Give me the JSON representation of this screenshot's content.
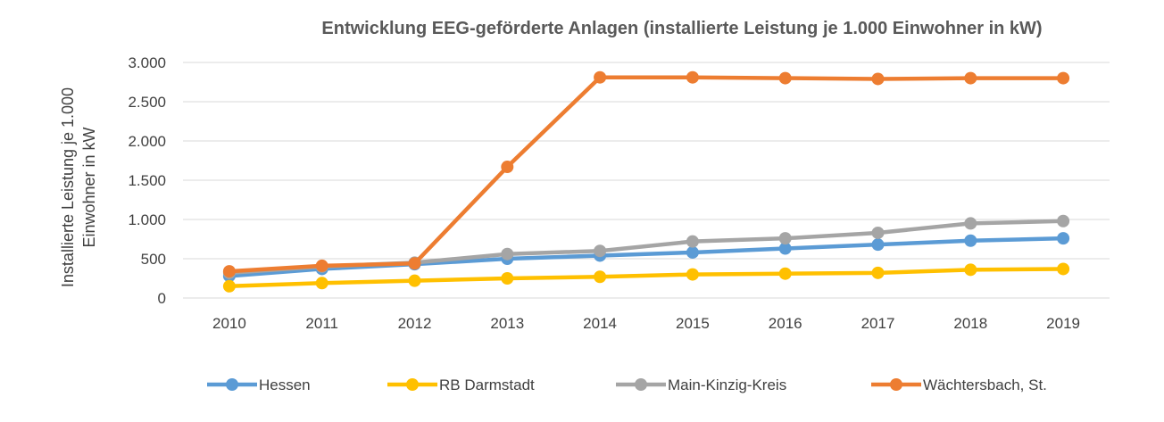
{
  "chart_data": {
    "type": "line",
    "title": "Entwicklung EEG-geförderte Anlagen (installierte Leistung je 1.000 Einwohner in kW)",
    "xlabel": "",
    "ylabel_lines": [
      "Installierte Leistung je 1.000",
      "Einwohner in kW"
    ],
    "x": [
      "2010",
      "2011",
      "2012",
      "2013",
      "2014",
      "2015",
      "2016",
      "2017",
      "2018",
      "2019"
    ],
    "ylim": [
      0,
      3000
    ],
    "yticks": [
      0,
      500,
      1000,
      1500,
      2000,
      2500,
      3000
    ],
    "ytick_labels": [
      "0",
      "500",
      "1.000",
      "1.500",
      "2.000",
      "2.500",
      "3.000"
    ],
    "grid": true,
    "legend_position": "bottom",
    "series": [
      {
        "name": "Hessen",
        "color": "#5b9bd5",
        "values": [
          280,
          370,
          430,
          500,
          540,
          580,
          630,
          680,
          730,
          760
        ]
      },
      {
        "name": "RB Darmstadt",
        "color": "#ffc000",
        "values": [
          150,
          190,
          220,
          250,
          270,
          300,
          310,
          320,
          360,
          370
        ]
      },
      {
        "name": "Main-Kinzig-Kreis",
        "color": "#a5a5a5",
        "values": [
          320,
          400,
          450,
          560,
          600,
          720,
          760,
          830,
          950,
          980
        ]
      },
      {
        "name": "Wächtersbach, St.",
        "color": "#ed7d31",
        "values": [
          340,
          410,
          440,
          1670,
          2810,
          2810,
          2800,
          2790,
          2800,
          2800
        ]
      }
    ]
  }
}
